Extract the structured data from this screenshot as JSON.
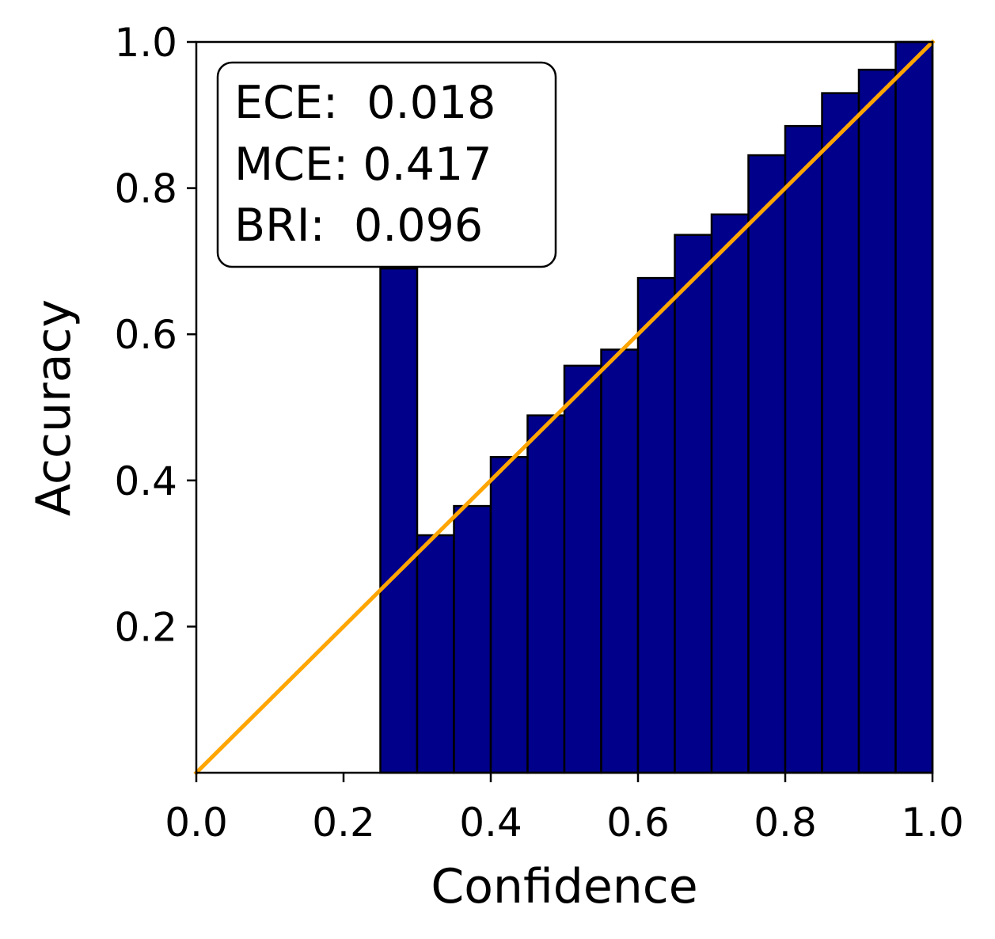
{
  "chart_data": {
    "type": "bar",
    "bin_edges": [
      0.25,
      0.3,
      0.35,
      0.4,
      0.45,
      0.5,
      0.55,
      0.6,
      0.65,
      0.7,
      0.75,
      0.8,
      0.85,
      0.9,
      0.95,
      1.0
    ],
    "values": [
      0.69,
      0.325,
      0.365,
      0.432,
      0.489,
      0.557,
      0.579,
      0.677,
      0.736,
      0.764,
      0.845,
      0.885,
      0.93,
      0.962,
      1.0
    ],
    "reference_line": {
      "x": [
        0.0,
        1.0
      ],
      "y": [
        0.0,
        1.0
      ]
    },
    "xlabel": "Confidence",
    "ylabel": "Accuracy",
    "xlim": [
      0.0,
      1.0
    ],
    "ylim": [
      0.0,
      1.0
    ],
    "xticks": [
      "0.0",
      "0.2",
      "0.4",
      "0.6",
      "0.8",
      "1.0"
    ],
    "yticks": [
      "0.2",
      "0.4",
      "0.6",
      "0.8",
      "1.0"
    ],
    "grid": false,
    "colors": {
      "bar": "#00008b",
      "bar_edge": "#000000",
      "reference_line": "#ffa500"
    },
    "annotation": {
      "lines": [
        "ECE:  0.018",
        "MCE: 0.417",
        "BRI:  0.096"
      ],
      "placement": "top-left"
    }
  }
}
